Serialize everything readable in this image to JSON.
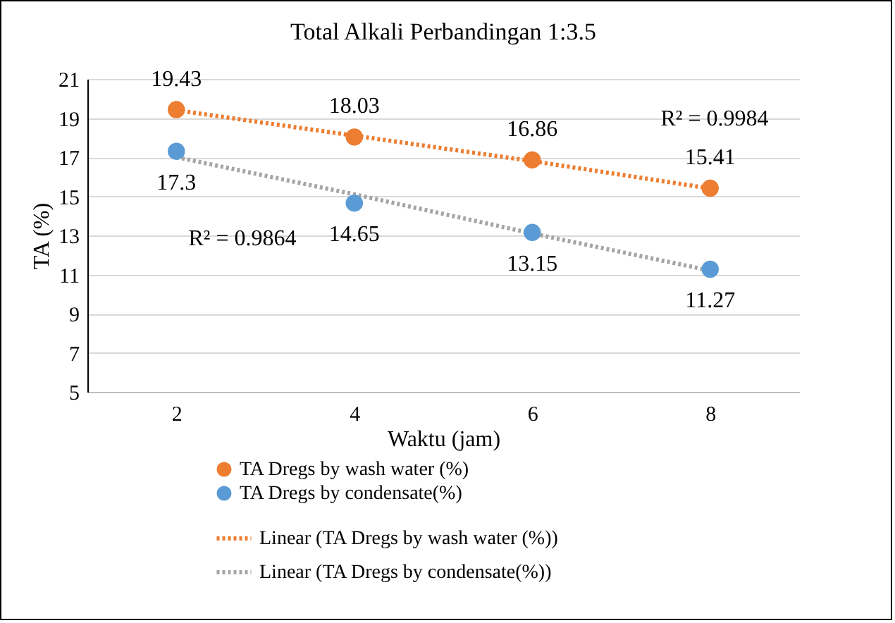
{
  "chart_data": {
    "type": "scatter",
    "title": "Total Alkali Perbandingan 1:3.5",
    "xlabel": "Waktu (jam)",
    "ylabel": "TA (%)",
    "categories": [
      "2",
      "4",
      "6",
      "8"
    ],
    "series": [
      {
        "name": "TA Dregs by wash water (%)",
        "color": "#ed7d31",
        "marker": "circle",
        "values": [
          19.43,
          18.03,
          16.86,
          15.41
        ],
        "value_labels": [
          "19.43",
          "18.03",
          "16.86",
          "15.41"
        ]
      },
      {
        "name": "TA Dregs by condensate(%)",
        "color": "#5b9bd5",
        "marker": "circle",
        "values": [
          17.3,
          14.65,
          13.15,
          11.27
        ],
        "value_labels": [
          "17.3",
          "14.65",
          "13.15",
          "11.27"
        ]
      },
      {
        "name": "Linear (TA Dregs by wash water (%))",
        "type": "line",
        "color": "#ed7d31",
        "line_style": "dotted",
        "marker": "none",
        "values": [
          19.4,
          18.1,
          16.8,
          15.4
        ]
      },
      {
        "name": "Linear (TA Dregs by condensate(%))",
        "type": "line",
        "color": "#a5a5a5",
        "line_style": "dotted",
        "marker": "none",
        "values": [
          17.0,
          15.1,
          13.1,
          11.2
        ]
      }
    ],
    "annotations": [
      "R² = 0.9984",
      "R² = 0.9864"
    ],
    "ylim": [
      5,
      21
    ],
    "yticks": [
      5,
      7,
      9,
      11,
      13,
      15,
      17,
      19,
      21
    ],
    "grid": "y",
    "legend": "bottom"
  }
}
